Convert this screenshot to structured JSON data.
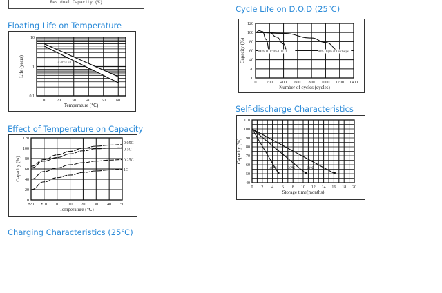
{
  "top_box": {
    "label": "Residual Capacity (%)"
  },
  "titles": {
    "float": "Floating Life on Temperature",
    "cycle": "Cycle Life on D.O.D (25℃)",
    "temp": "Effect of Temperature on Capacity",
    "self": "Self-discharge Characteristics",
    "charging": "Charging Characteristics (25℃)"
  },
  "chart_data": [
    {
      "id": "float",
      "type": "area",
      "xlabel": "Temperature (℃)",
      "ylabel": "Life (years)",
      "xlim": [
        5,
        65
      ],
      "ylim": [
        0.1,
        10
      ],
      "yscale": "log",
      "xticks": [
        10,
        20,
        30,
        40,
        50,
        60
      ],
      "yticks": [
        0.1,
        1,
        10
      ],
      "grid": true,
      "series": [
        {
          "name": "2.30V/Cell",
          "upper": [
            [
              10,
              6
            ],
            [
              60,
              0.45
            ]
          ],
          "lower": [
            [
              10,
              5
            ],
            [
              60,
              0.28
            ]
          ]
        }
      ]
    },
    {
      "id": "cycle",
      "type": "line",
      "xlabel": "Number of cycles (cycles)",
      "ylabel": "Capacity (%)",
      "xlim": [
        0,
        1400
      ],
      "ylim": [
        0,
        120
      ],
      "xticks": [
        0,
        200,
        400,
        600,
        800,
        1000,
        1200,
        1400
      ],
      "yticks": [
        0,
        20,
        40,
        60,
        80,
        100,
        120
      ],
      "grid": true,
      "series": [
        {
          "name": "100% D.O.D",
          "points": [
            [
              0,
              100
            ],
            [
              50,
              104
            ],
            [
              100,
              102
            ],
            [
              150,
              85
            ],
            [
              200,
              60
            ]
          ]
        },
        {
          "name": "50% D.O.D",
          "points": [
            [
              0,
              100
            ],
            [
              200,
              100
            ],
            [
              300,
              90
            ],
            [
              400,
              75
            ],
            [
              450,
              60
            ]
          ]
        },
        {
          "name": "30% Depth of Discharge",
          "points": [
            [
              0,
              100
            ],
            [
              400,
              98
            ],
            [
              800,
              88
            ],
            [
              1000,
              78
            ],
            [
              1200,
              60
            ]
          ]
        }
      ]
    },
    {
      "id": "temp",
      "type": "line",
      "xlabel": "Temperature (℃)",
      "ylabel": "Capacity (%)",
      "xlim": [
        -20,
        50
      ],
      "ylim": [
        0,
        120
      ],
      "xticks": [
        -20,
        -10,
        0,
        10,
        20,
        30,
        40,
        50
      ],
      "yticks": [
        0,
        20,
        40,
        60,
        80,
        100,
        120
      ],
      "grid": true,
      "series": [
        {
          "name": "0.05C",
          "points": [
            [
              -20,
              65
            ],
            [
              -10,
              78
            ],
            [
              0,
              87
            ],
            [
              10,
              94
            ],
            [
              20,
              100
            ],
            [
              30,
              104
            ],
            [
              40,
              106
            ],
            [
              50,
              107
            ]
          ]
        },
        {
          "name": "0.1C",
          "points": [
            [
              -20,
              62
            ],
            [
              -10,
              75
            ],
            [
              0,
              82
            ],
            [
              10,
              89
            ],
            [
              20,
              95
            ],
            [
              30,
              99
            ],
            [
              40,
              100
            ],
            [
              50,
              101
            ]
          ]
        },
        {
          "name": "0.25C",
          "points": [
            [
              -20,
              40
            ],
            [
              -10,
              55
            ],
            [
              0,
              62
            ],
            [
              10,
              68
            ],
            [
              20,
              72
            ],
            [
              30,
              75
            ],
            [
              40,
              77
            ],
            [
              50,
              78
            ]
          ]
        },
        {
          "name": "1C",
          "points": [
            [
              -20,
              20
            ],
            [
              -10,
              35
            ],
            [
              0,
              43
            ],
            [
              10,
              48
            ],
            [
              20,
              53
            ],
            [
              30,
              56
            ],
            [
              40,
              58
            ],
            [
              50,
              59
            ]
          ]
        }
      ]
    },
    {
      "id": "self",
      "type": "line",
      "xlabel": "Storage time(months)",
      "ylabel": "Capacity (%)",
      "xlim": [
        0,
        20
      ],
      "ylim": [
        40,
        110
      ],
      "xticks": [
        0,
        2,
        4,
        6,
        8,
        10,
        12,
        14,
        16,
        18,
        20
      ],
      "yticks": [
        40,
        50,
        60,
        70,
        80,
        90,
        100,
        110
      ],
      "grid": true,
      "series": [
        {
          "name": "40℃",
          "points": [
            [
              0,
              100
            ],
            [
              5.2,
              50
            ]
          ]
        },
        {
          "name": "30℃",
          "points": [
            [
              0,
              100
            ],
            [
              10.6,
              50
            ]
          ]
        },
        {
          "name": "20℃",
          "points": [
            [
              0,
              100
            ],
            [
              16.2,
              50
            ]
          ]
        }
      ]
    }
  ]
}
